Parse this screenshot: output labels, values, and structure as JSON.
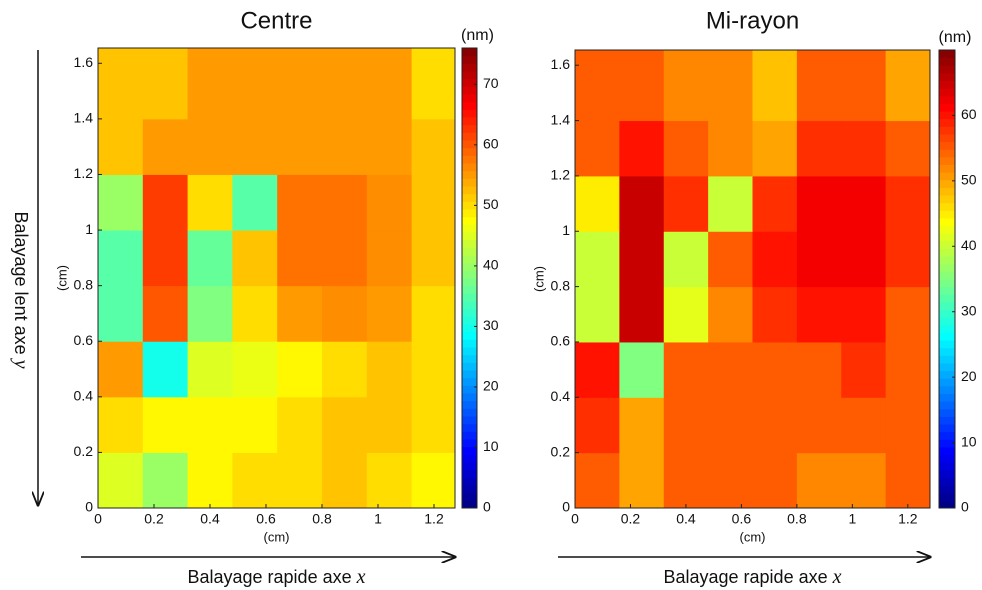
{
  "figure": {
    "ylabel": "Balayage lent axe",
    "yvar": "y"
  },
  "chart_data": [
    {
      "type": "heatmap",
      "title": "Centre",
      "xlabel": "(cm)",
      "ylabel": "(cm)",
      "colorbar_label": "(nm)",
      "caption": "Balayage rapide axe",
      "caption_var": "x",
      "xlim": [
        0,
        1.275
      ],
      "ylim": [
        0,
        1.655
      ],
      "xticks": [
        0,
        0.2,
        0.4,
        0.6,
        0.8,
        1,
        1.2
      ],
      "yticks": [
        0,
        0.2,
        0.4,
        0.6,
        0.8,
        1,
        1.2,
        1.4,
        1.6
      ],
      "clim": [
        0,
        76
      ],
      "cticks": [
        0,
        10,
        20,
        30,
        40,
        50,
        60,
        70
      ],
      "colormap": "jet",
      "xbins": [
        0,
        0.16,
        0.32,
        0.48,
        0.64,
        0.8,
        0.96,
        1.12,
        1.275
      ],
      "ybins": [
        0,
        0.2,
        0.4,
        0.6,
        0.8,
        1,
        1.2,
        1.4,
        1.655
      ],
      "values": [
        [
          45,
          40,
          48,
          50,
          50,
          52,
          50,
          48
        ],
        [
          50,
          48,
          48,
          48,
          50,
          52,
          52,
          50
        ],
        [
          55,
          30,
          45,
          46,
          48,
          50,
          52,
          50
        ],
        [
          35,
          60,
          38,
          50,
          55,
          56,
          55,
          50
        ],
        [
          35,
          62,
          36,
          52,
          58,
          58,
          56,
          52
        ],
        [
          40,
          62,
          50,
          35,
          58,
          58,
          56,
          52
        ],
        [
          52,
          55,
          55,
          55,
          55,
          55,
          55,
          52
        ],
        [
          52,
          52,
          55,
          55,
          55,
          55,
          55,
          50
        ]
      ]
    },
    {
      "type": "heatmap",
      "title": "Mi-rayon",
      "xlabel": "(cm)",
      "ylabel": "(cm)",
      "colorbar_label": "(nm)",
      "caption": "Balayage rapide axe",
      "caption_var": "x",
      "xlim": [
        0,
        1.28
      ],
      "ylim": [
        0,
        1.655
      ],
      "xticks": [
        0,
        0.2,
        0.4,
        0.6,
        0.8,
        1,
        1.2
      ],
      "yticks": [
        0,
        0.2,
        0.4,
        0.6,
        0.8,
        1,
        1.2,
        1.4,
        1.6
      ],
      "clim": [
        0,
        70
      ],
      "cticks": [
        0,
        10,
        20,
        30,
        40,
        50,
        60
      ],
      "colormap": "jet",
      "xbins": [
        0,
        0.16,
        0.32,
        0.48,
        0.64,
        0.8,
        0.96,
        1.12,
        1.28
      ],
      "ybins": [
        0,
        0.2,
        0.4,
        0.6,
        0.8,
        1,
        1.2,
        1.4,
        1.655
      ],
      "values": [
        [
          55,
          50,
          55,
          55,
          55,
          52,
          52,
          55
        ],
        [
          58,
          50,
          55,
          55,
          55,
          55,
          55,
          55
        ],
        [
          60,
          35,
          55,
          55,
          55,
          55,
          58,
          55
        ],
        [
          40,
          65,
          42,
          52,
          58,
          60,
          60,
          55
        ],
        [
          40,
          65,
          40,
          55,
          60,
          62,
          62,
          58
        ],
        [
          45,
          65,
          58,
          40,
          58,
          62,
          62,
          58
        ],
        [
          55,
          60,
          55,
          52,
          50,
          58,
          58,
          55
        ],
        [
          55,
          55,
          52,
          52,
          48,
          55,
          55,
          50
        ]
      ]
    }
  ]
}
